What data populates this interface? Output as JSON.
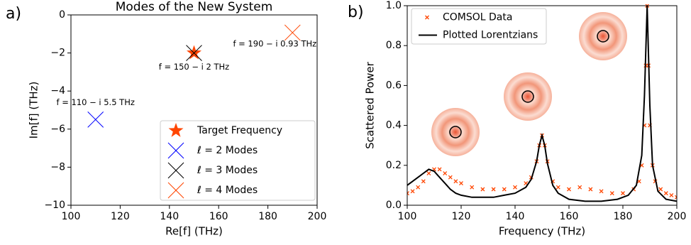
{
  "chart_data": [
    {
      "type": "scatter",
      "panel_label": "a)",
      "title": "Modes of the New System",
      "x_label": "Re[f] (THz)",
      "y_label": "Im[f] (THz)",
      "xlim": [
        100,
        200
      ],
      "ylim": [
        -10,
        0
      ],
      "xticks": [
        100,
        120,
        140,
        160,
        180,
        200
      ],
      "yticks": [
        {
          "value": 0,
          "label": "0"
        },
        {
          "value": -2,
          "label": "−2"
        },
        {
          "value": -4,
          "label": "−4"
        },
        {
          "value": -6,
          "label": "−6"
        },
        {
          "value": -8,
          "label": "−8"
        },
        {
          "value": -10,
          "label": "−10"
        }
      ],
      "legend": "lower right",
      "series": [
        {
          "name": "Target Frequency",
          "color": "#ff4500",
          "marker": "star",
          "x": [
            150
          ],
          "values": [
            -2
          ]
        },
        {
          "name": "ℓ = 2 Modes",
          "color": "#0000ff",
          "marker": "x",
          "x": [
            110
          ],
          "values": [
            -5.5
          ],
          "annotation": "f = 110 − i 5.5 THz"
        },
        {
          "name": "ℓ = 3 Modes",
          "color": "#000000",
          "marker": "x",
          "x": [
            150
          ],
          "values": [
            -2
          ],
          "annotation": "f = 150 − i 2 THz"
        },
        {
          "name": "ℓ = 4 Modes",
          "color": "#ff4500",
          "marker": "x",
          "x": [
            190
          ],
          "values": [
            -0.93
          ],
          "annotation": "f = 190 − i 0.93 THz"
        }
      ]
    },
    {
      "type": "line",
      "panel_label": "b)",
      "x_label": "Frequency (THz)",
      "y_label": "Scattered Power",
      "xlim": [
        100,
        200
      ],
      "ylim": [
        0,
        1
      ],
      "xticks": [
        100,
        120,
        140,
        160,
        180,
        200
      ],
      "yticks": [
        {
          "value": 0,
          "label": "0.0"
        },
        0.2,
        0.4,
        0.6,
        0.8,
        {
          "value": 1,
          "label": "1.0"
        }
      ],
      "legend": "upper left",
      "series": [
        {
          "name": "COMSOL Data",
          "color": "#ff4500",
          "style": "markers",
          "x": [
            100,
            102,
            104,
            106,
            108,
            110,
            112,
            114,
            116,
            118,
            120,
            124,
            128,
            132,
            136,
            140,
            144,
            146,
            148,
            149,
            150,
            151,
            152,
            154,
            156,
            160,
            164,
            168,
            172,
            176,
            180,
            184,
            186,
            187,
            188,
            188.5,
            189,
            189.5,
            190,
            191,
            192,
            194,
            196,
            198,
            200
          ],
          "values": [
            0.06,
            0.07,
            0.09,
            0.12,
            0.16,
            0.18,
            0.18,
            0.16,
            0.14,
            0.12,
            0.11,
            0.09,
            0.08,
            0.08,
            0.08,
            0.09,
            0.11,
            0.14,
            0.22,
            0.3,
            0.35,
            0.3,
            0.22,
            0.12,
            0.09,
            0.08,
            0.09,
            0.08,
            0.07,
            0.06,
            0.06,
            0.08,
            0.12,
            0.2,
            0.4,
            0.7,
            1.0,
            0.7,
            0.4,
            0.2,
            0.12,
            0.08,
            0.06,
            0.05,
            0.04
          ]
        },
        {
          "name": "Plotted Lorentzians",
          "color": "#000000",
          "style": "line",
          "x": [
            100,
            102,
            104,
            106,
            108,
            110,
            112,
            114,
            116,
            118,
            120,
            124,
            128,
            132,
            136,
            140,
            144,
            146,
            148,
            149,
            150,
            151,
            152,
            154,
            156,
            160,
            166,
            172,
            178,
            182,
            185,
            187,
            188,
            189,
            190,
            191,
            193,
            196,
            200
          ],
          "values": [
            0.1,
            0.12,
            0.14,
            0.16,
            0.18,
            0.17,
            0.14,
            0.11,
            0.08,
            0.06,
            0.05,
            0.04,
            0.04,
            0.04,
            0.05,
            0.06,
            0.09,
            0.13,
            0.22,
            0.3,
            0.35,
            0.3,
            0.21,
            0.1,
            0.06,
            0.03,
            0.02,
            0.02,
            0.03,
            0.05,
            0.1,
            0.25,
            0.55,
            1.0,
            0.5,
            0.2,
            0.07,
            0.03,
            0.02
          ]
        }
      ]
    }
  ]
}
